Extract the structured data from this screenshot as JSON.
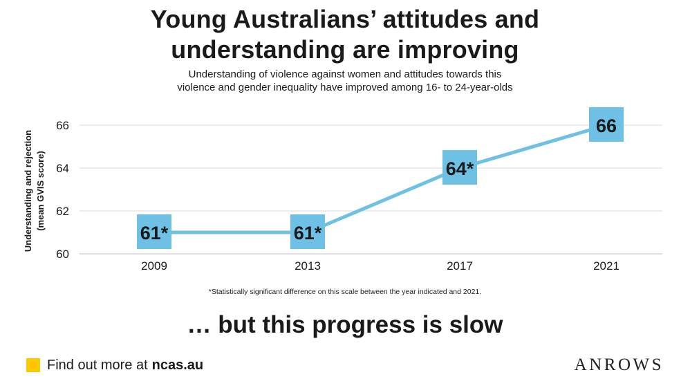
{
  "title": {
    "line1": "Young Australians’ attitudes and",
    "line2": "understanding are improving"
  },
  "subtitle": {
    "line1": "Understanding of violence against women and attitudes towards this",
    "line2": "violence and gender inequality have improved among 16- to 24-year-olds"
  },
  "chart_data": {
    "type": "line",
    "x": [
      "2009",
      "2013",
      "2017",
      "2021"
    ],
    "series": [
      {
        "values": [
          61,
          61,
          64,
          66
        ]
      }
    ],
    "data_labels": [
      "61*",
      "61*",
      "64*",
      "66"
    ],
    "ylabel_line1": "Understanding and rejection",
    "ylabel_line2": "(mean GVIS score)",
    "ylim": [
      60,
      67
    ],
    "yticks": [
      60,
      62,
      64,
      66
    ],
    "grid": true,
    "legend": "none",
    "colors": {
      "line": "#6EC1E4",
      "label_box": "#6EC1E4",
      "grid": "#d9d9d9",
      "axis": "#bbbbbb"
    }
  },
  "footnote": "*Statistically significant difference on this scale between the year indicated and 2021.",
  "tagline": "… but this progress is slow",
  "cta": {
    "text": "Find out more at",
    "link": "ncas.au",
    "square_color": "#FFC700"
  },
  "logo": "ANROWS"
}
